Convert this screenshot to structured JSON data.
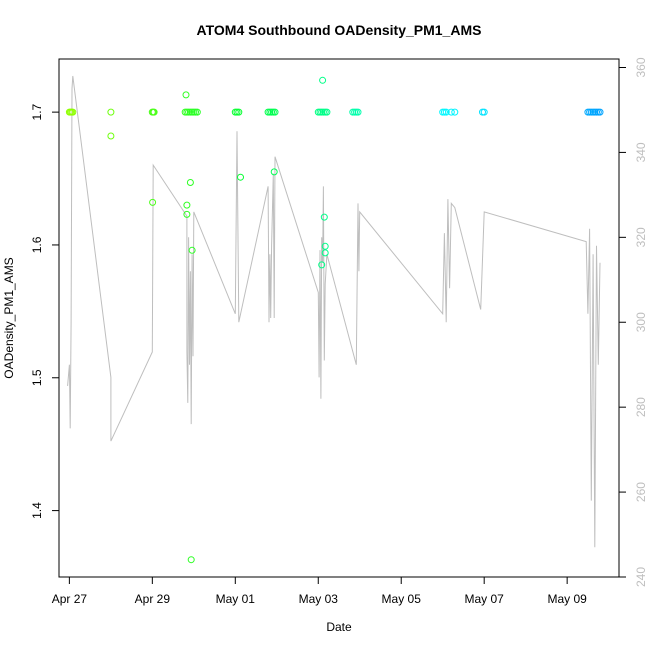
{
  "chart_data": {
    "type": "scatter",
    "title": "ATOM4 Southbound OADensity_PM1_AMS",
    "xlabel": "Date",
    "ylabel": "OADensity_PM1_AMS",
    "x_range": [
      "2018-04-26T18:00",
      "2018-05-10T06:00"
    ],
    "ylim": [
      1.35,
      1.74
    ],
    "y2lim": [
      240,
      362
    ],
    "x_ticks": [
      {
        "date": "2018-04-27",
        "label": "Apr 27"
      },
      {
        "date": "2018-04-29",
        "label": "Apr 29"
      },
      {
        "date": "2018-05-01",
        "label": "May 01"
      },
      {
        "date": "2018-05-03",
        "label": "May 03"
      },
      {
        "date": "2018-05-05",
        "label": "May 05"
      },
      {
        "date": "2018-05-07",
        "label": "May 07"
      },
      {
        "date": "2018-05-09",
        "label": "May 09"
      }
    ],
    "y_ticks": [
      "1.4",
      "1.5",
      "1.6",
      "1.7"
    ],
    "y2_ticks": [
      "240",
      "260",
      "280",
      "300",
      "320",
      "340",
      "360"
    ],
    "series": [
      {
        "kind": "points",
        "color_by": "time",
        "point_color_range": [
          "#99ff00",
          "#00ff33",
          "#00ffff",
          "#0099ff"
        ],
        "points": [
          [
            "2018-04-27T00:00",
            1.7
          ],
          [
            "2018-04-27T00:40",
            1.7
          ],
          [
            "2018-04-27T01:20",
            1.7
          ],
          [
            "2018-04-27T02:00",
            1.7
          ],
          [
            "2018-04-28T00:00",
            1.7
          ],
          [
            "2018-04-28T00:00",
            1.682
          ],
          [
            "2018-04-29T00:00",
            1.7
          ],
          [
            "2018-04-29T00:30",
            1.7
          ],
          [
            "2018-04-29T01:00",
            1.7
          ],
          [
            "2018-04-29T00:10",
            1.632
          ],
          [
            "2018-04-29T19:00",
            1.7
          ],
          [
            "2018-04-29T20:00",
            1.7
          ],
          [
            "2018-04-29T21:00",
            1.7
          ],
          [
            "2018-04-29T22:00",
            1.7
          ],
          [
            "2018-04-29T23:00",
            1.7
          ],
          [
            "2018-04-30T00:00",
            1.7
          ],
          [
            "2018-04-30T01:00",
            1.7
          ],
          [
            "2018-04-30T02:00",
            1.7
          ],
          [
            "2018-04-29T19:30",
            1.713
          ],
          [
            "2018-04-29T20:00",
            1.63
          ],
          [
            "2018-04-29T20:00",
            1.623
          ],
          [
            "2018-04-29T22:00",
            1.647
          ],
          [
            "2018-04-29T23:00",
            1.596
          ],
          [
            "2018-04-29T22:30",
            1.363
          ],
          [
            "2018-05-01T00:00",
            1.7
          ],
          [
            "2018-05-01T01:00",
            1.7
          ],
          [
            "2018-05-01T02:00",
            1.7
          ],
          [
            "2018-05-01T03:00",
            1.651
          ],
          [
            "2018-05-01T19:00",
            1.7
          ],
          [
            "2018-05-01T20:00",
            1.7
          ],
          [
            "2018-05-01T21:00",
            1.7
          ],
          [
            "2018-05-01T22:00",
            1.7
          ],
          [
            "2018-05-01T23:00",
            1.7
          ],
          [
            "2018-05-01T22:30",
            1.655
          ],
          [
            "2018-05-03T00:00",
            1.7
          ],
          [
            "2018-05-03T01:00",
            1.7
          ],
          [
            "2018-05-03T02:00",
            1.7
          ],
          [
            "2018-05-03T03:00",
            1.7
          ],
          [
            "2018-05-03T04:00",
            1.7
          ],
          [
            "2018-05-03T05:00",
            1.7
          ],
          [
            "2018-05-03T02:30",
            1.724
          ],
          [
            "2018-05-03T03:30",
            1.621
          ],
          [
            "2018-05-03T04:00",
            1.599
          ],
          [
            "2018-05-03T04:00",
            1.594
          ],
          [
            "2018-05-03T02:00",
            1.585
          ],
          [
            "2018-05-03T20:00",
            1.7
          ],
          [
            "2018-05-03T21:00",
            1.7
          ],
          [
            "2018-05-03T22:00",
            1.7
          ],
          [
            "2018-05-03T23:00",
            1.7
          ],
          [
            "2018-05-06T00:00",
            1.7
          ],
          [
            "2018-05-06T01:00",
            1.7
          ],
          [
            "2018-05-06T02:00",
            1.7
          ],
          [
            "2018-05-06T05:00",
            1.7
          ],
          [
            "2018-05-06T07:00",
            1.7
          ],
          [
            "2018-05-06T23:00",
            1.7
          ],
          [
            "2018-05-07T00:00",
            1.7
          ],
          [
            "2018-05-09T12:00",
            1.7
          ],
          [
            "2018-05-09T13:00",
            1.7
          ],
          [
            "2018-05-09T14:00",
            1.7
          ],
          [
            "2018-05-09T15:00",
            1.7
          ],
          [
            "2018-05-09T16:00",
            1.7
          ],
          [
            "2018-05-09T17:00",
            1.7
          ],
          [
            "2018-05-09T18:00",
            1.7
          ],
          [
            "2018-05-09T19:00",
            1.7
          ]
        ]
      },
      {
        "kind": "line",
        "axis": "right",
        "color": "#bebebe",
        "points": [
          [
            "2018-04-26T23:00",
            285
          ],
          [
            "2018-04-27T00:00",
            290
          ],
          [
            "2018-04-27T00:30",
            275
          ],
          [
            "2018-04-27T01:00",
            300
          ],
          [
            "2018-04-27T01:30",
            355
          ],
          [
            "2018-04-27T02:00",
            358
          ],
          [
            "2018-04-28T00:00",
            287
          ],
          [
            "2018-04-28T00:00",
            282
          ],
          [
            "2018-04-28T00:00",
            272
          ],
          [
            "2018-04-29T00:00",
            293
          ],
          [
            "2018-04-29T00:30",
            337
          ],
          [
            "2018-04-29T20:00",
            325
          ],
          [
            "2018-04-29T20:00",
            293
          ],
          [
            "2018-04-29T20:30",
            281
          ],
          [
            "2018-04-29T21:00",
            320
          ],
          [
            "2018-04-29T21:30",
            290
          ],
          [
            "2018-04-29T22:00",
            312
          ],
          [
            "2018-04-29T22:30",
            276
          ],
          [
            "2018-04-29T23:00",
            316
          ],
          [
            "2018-04-29T23:30",
            292
          ],
          [
            "2018-04-30T00:00",
            326
          ],
          [
            "2018-05-01T00:00",
            302
          ],
          [
            "2018-05-01T01:00",
            345
          ],
          [
            "2018-05-01T02:00",
            300
          ],
          [
            "2018-05-01T19:00",
            332
          ],
          [
            "2018-05-01T19:30",
            300
          ],
          [
            "2018-05-01T20:00",
            316
          ],
          [
            "2018-05-01T20:30",
            301
          ],
          [
            "2018-05-01T21:00",
            318
          ],
          [
            "2018-05-01T22:00",
            335
          ],
          [
            "2018-05-01T22:30",
            301
          ],
          [
            "2018-05-01T23:00",
            339
          ],
          [
            "2018-05-03T00:00",
            307
          ],
          [
            "2018-05-03T00:30",
            287
          ],
          [
            "2018-05-03T01:00",
            317
          ],
          [
            "2018-05-03T01:30",
            282
          ],
          [
            "2018-05-03T02:00",
            320
          ],
          [
            "2018-05-03T02:30",
            314
          ],
          [
            "2018-05-03T03:00",
            332
          ],
          [
            "2018-05-03T03:30",
            291
          ],
          [
            "2018-05-03T04:00",
            309
          ],
          [
            "2018-05-03T05:00",
            316
          ],
          [
            "2018-05-03T22:00",
            290
          ],
          [
            "2018-05-03T23:00",
            328
          ],
          [
            "2018-05-03T23:30",
            312
          ],
          [
            "2018-05-04T00:00",
            326
          ],
          [
            "2018-05-06T00:00",
            302
          ],
          [
            "2018-05-06T01:00",
            321
          ],
          [
            "2018-05-06T02:00",
            300
          ],
          [
            "2018-05-06T03:00",
            329
          ],
          [
            "2018-05-06T04:00",
            308
          ],
          [
            "2018-05-06T05:00",
            328
          ],
          [
            "2018-05-06T07:00",
            327
          ],
          [
            "2018-05-06T22:00",
            303
          ],
          [
            "2018-05-07T00:00",
            326
          ],
          [
            "2018-05-09T11:00",
            319
          ],
          [
            "2018-05-09T12:00",
            302
          ],
          [
            "2018-05-09T13:00",
            322
          ],
          [
            "2018-05-09T14:00",
            258
          ],
          [
            "2018-05-09T15:00",
            316
          ],
          [
            "2018-05-09T16:00",
            247
          ],
          [
            "2018-05-09T17:00",
            318
          ],
          [
            "2018-05-09T18:00",
            290
          ],
          [
            "2018-05-09T19:00",
            314
          ]
        ]
      }
    ],
    "grid": false,
    "legend": "none"
  }
}
